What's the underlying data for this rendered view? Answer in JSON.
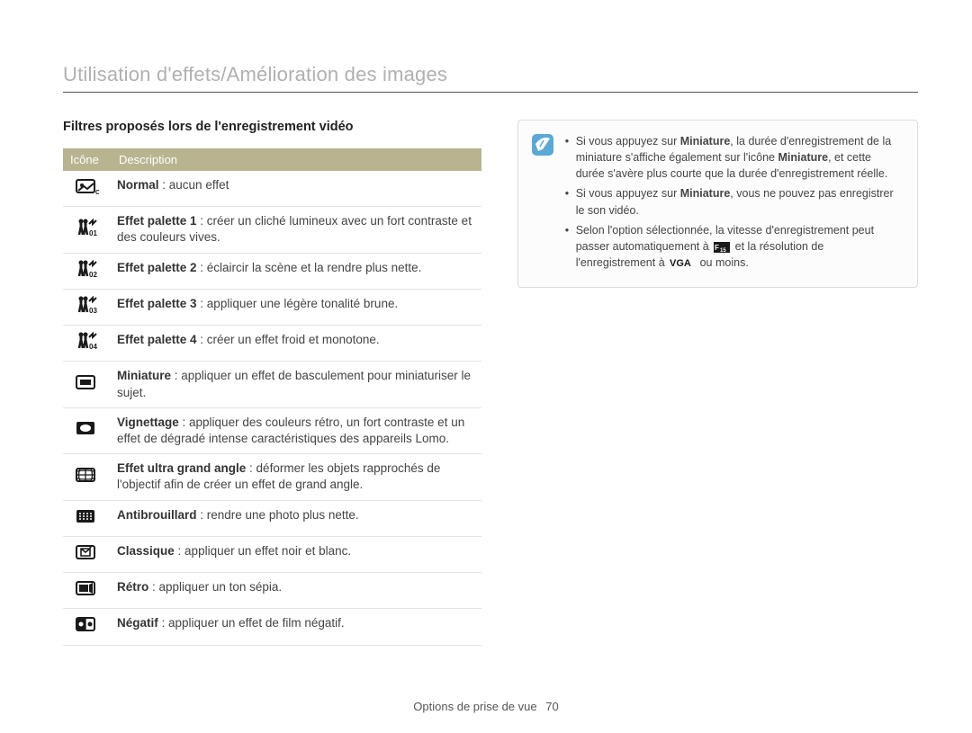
{
  "page": {
    "title": "Utilisation d'effets/Amélioration des images",
    "subheading": "Filtres proposés lors de l'enregistrement vidéo",
    "footer_label": "Options de prise de vue",
    "page_number": "70"
  },
  "table": {
    "header_icon": "Icône",
    "header_desc": "Description",
    "header_bg": "#b8b490",
    "header_fg": "#ffffff",
    "border_color": "#e2e2e2",
    "rows": [
      {
        "icon": "normal",
        "name": "Normal",
        "sep": " : ",
        "text": "aucun effet"
      },
      {
        "icon": "pal1",
        "name": "Effet palette 1",
        "sep": " : ",
        "text": "créer un cliché lumineux avec un fort contraste et des couleurs vives."
      },
      {
        "icon": "pal2",
        "name": "Effet palette 2",
        "sep": " : ",
        "text": "éclaircir la scène et la rendre plus nette."
      },
      {
        "icon": "pal3",
        "name": "Effet palette 3",
        "sep": " : ",
        "text": "appliquer une légère tonalité brune."
      },
      {
        "icon": "pal4",
        "name": "Effet palette 4",
        "sep": " : ",
        "text": "créer un effet froid et monotone."
      },
      {
        "icon": "miniature",
        "name": "Miniature",
        "sep": " : ",
        "text": "appliquer un effet de basculement pour miniaturiser le sujet."
      },
      {
        "icon": "vignette",
        "name": "Vignettage",
        "sep": " : ",
        "text": "appliquer des couleurs rétro, un fort contraste et un effet de dégradé intense caractéristiques des appareils Lomo."
      },
      {
        "icon": "fisheye",
        "name": "Effet ultra grand angle",
        "sep": " : ",
        "text": "déformer les objets rapprochés de l'objectif afin de créer un effet de grand angle."
      },
      {
        "icon": "defog",
        "name": "Antibrouillard",
        "sep": " : ",
        "text": "rendre une photo plus nette."
      },
      {
        "icon": "classic",
        "name": "Classique",
        "sep": " : ",
        "text": "appliquer un effet noir et blanc."
      },
      {
        "icon": "retro",
        "name": "Rétro",
        "sep": " : ",
        "text": "appliquer un ton sépia."
      },
      {
        "icon": "negative",
        "name": "Négatif",
        "sep": " : ",
        "text": "appliquer un effet de film négatif."
      }
    ]
  },
  "note": {
    "border_color": "#dcdcdc",
    "bg": "#fcfcfc",
    "items": [
      {
        "pre": "Si vous appuyez sur ",
        "b1": "Miniature",
        "mid1": ", la durée d'enregistrement de la miniature s'affiche également sur l'icône ",
        "b2": "Miniature",
        "post": ", et cette durée s'avère plus courte que la durée d'enregistrement réelle."
      },
      {
        "pre": "Si vous appuyez sur ",
        "b1": "Miniature",
        "mid1": ", vous ne pouvez pas enregistrer le son vidéo.",
        "b2": "",
        "post": ""
      },
      {
        "pre": "Selon l'option sélectionnée, la vitesse d'enregistrement peut passer automatiquement à ",
        "ico1": "fps",
        "mid1": " et la résolution de l'enregistrement à ",
        "ico2": "vga",
        "post": " ou moins."
      }
    ]
  },
  "icons": {
    "size": 22,
    "color": "#1a1a1a"
  }
}
